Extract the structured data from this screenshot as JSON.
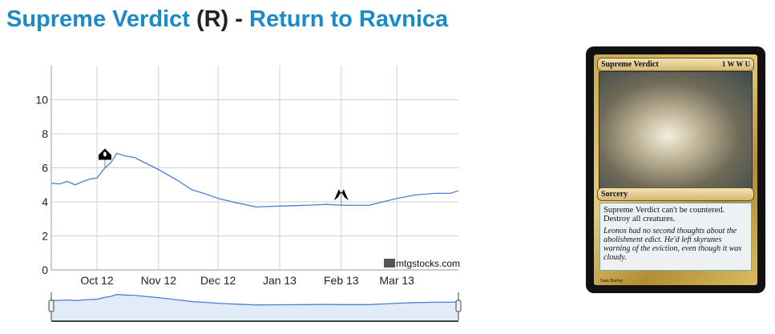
{
  "header": {
    "card_name": "Supreme Verdict",
    "rarity": "(R)",
    "separator": "-",
    "set_name": "Return to Ravnica"
  },
  "chart_data": {
    "type": "line",
    "x_type": "date",
    "xlim": [
      "2012-09-08",
      "2013-04-01"
    ],
    "ylim": [
      0,
      12
    ],
    "yticks": [
      0,
      2,
      4,
      6,
      8,
      10
    ],
    "xticks": [
      {
        "date": "2012-10-01",
        "label": "Oct 12"
      },
      {
        "date": "2012-11-01",
        "label": "Nov 12"
      },
      {
        "date": "2012-12-01",
        "label": "Dec 12"
      },
      {
        "date": "2013-01-01",
        "label": "Jan 13"
      },
      {
        "date": "2013-02-01",
        "label": "Feb 13"
      },
      {
        "date": "2013-03-01",
        "label": "Mar 13"
      }
    ],
    "grid": true,
    "color": "#4a7fd6",
    "points": [
      [
        "2012-09-08",
        5.1
      ],
      [
        "2012-09-12",
        5.05
      ],
      [
        "2012-09-16",
        5.2
      ],
      [
        "2012-09-20",
        5.0
      ],
      [
        "2012-09-24",
        5.2
      ],
      [
        "2012-09-28",
        5.35
      ],
      [
        "2012-10-01",
        5.4
      ],
      [
        "2012-10-05",
        6.0
      ],
      [
        "2012-10-08",
        6.3
      ],
      [
        "2012-10-11",
        6.85
      ],
      [
        "2012-10-15",
        6.7
      ],
      [
        "2012-10-20",
        6.6
      ],
      [
        "2012-10-25",
        6.3
      ],
      [
        "2012-11-01",
        5.9
      ],
      [
        "2012-11-10",
        5.3
      ],
      [
        "2012-11-18",
        4.7
      ],
      [
        "2012-11-25",
        4.45
      ],
      [
        "2012-12-01",
        4.2
      ],
      [
        "2012-12-10",
        3.95
      ],
      [
        "2012-12-20",
        3.7
      ],
      [
        "2013-01-01",
        3.75
      ],
      [
        "2013-01-15",
        3.8
      ],
      [
        "2013-01-25",
        3.85
      ],
      [
        "2013-02-01",
        3.8
      ],
      [
        "2013-02-15",
        3.8
      ],
      [
        "2013-02-22",
        4.0
      ],
      [
        "2013-03-01",
        4.2
      ],
      [
        "2013-03-10",
        4.4
      ],
      [
        "2013-03-20",
        4.5
      ],
      [
        "2013-03-28",
        4.5
      ],
      [
        "2013-04-01",
        4.65
      ]
    ],
    "events": [
      {
        "date": "2012-10-05",
        "value": 6.0,
        "icon": "return-to-ravnica-set-icon"
      },
      {
        "date": "2013-02-01",
        "value": 3.8,
        "icon": "gatecrash-set-icon"
      }
    ],
    "watermark": "mtgstocks.com",
    "navigator": true
  },
  "card": {
    "name": "Supreme Verdict",
    "cost": "1 W W U",
    "type": "Sorcery",
    "rules": "Supreme Verdict can't be countered.",
    "rules2": "Destroy all creatures.",
    "flavor": "Leonos had no second thoughts about the abolishment edict. He'd left skyrunes warning of the eviction, even though it was cloudy.",
    "artist": "Sam Burley"
  }
}
